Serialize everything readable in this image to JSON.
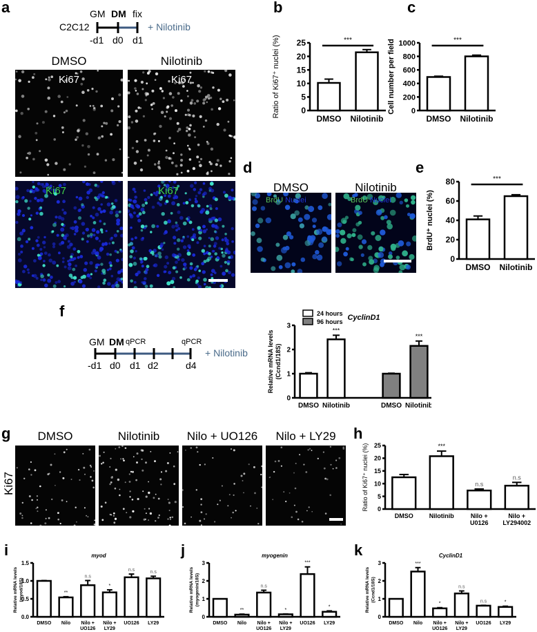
{
  "panels": {
    "a": {
      "label": "a",
      "timeline": {
        "cell_line": "C2C12",
        "top_labels": [
          "GM",
          "DM",
          "fix"
        ],
        "bottom_labels": [
          "-d1",
          "d0",
          "d1"
        ],
        "treatment": "+ Nilotinib"
      },
      "columns": [
        "DMSO",
        "Nilotinib"
      ],
      "row_labels": {
        "top": "Ki67",
        "bottom": "Ki67"
      }
    },
    "b": {
      "label": "b"
    },
    "c": {
      "label": "c"
    },
    "d": {
      "label": "d",
      "columns": [
        "DMSO",
        "Nilotinib"
      ],
      "stain_label": {
        "brdu": "BrdU",
        "nuclei": "Nuclei"
      }
    },
    "e": {
      "label": "e"
    },
    "f": {
      "label": "f",
      "timeline": {
        "top_labels": [
          "GM",
          "DM",
          "qPCR",
          "qPCR"
        ],
        "bottom_labels": [
          "-d1",
          "d0",
          "d1",
          "d2",
          "d4"
        ],
        "treatment": "+ Nilotinib"
      }
    },
    "g": {
      "label": "g",
      "columns": [
        "DMSO",
        "Nilotinib",
        "Nilo + UO126",
        "Nilo + LY29"
      ],
      "row_label": "Ki67"
    },
    "h": {
      "label": "h"
    },
    "i": {
      "label": "i"
    },
    "j": {
      "label": "j"
    },
    "k": {
      "label": "k"
    }
  },
  "colors": {
    "timeline_blue": "#3d5a80",
    "treatment_text": "#4a6b8a",
    "ki67_green": "#3fd24a",
    "nuclei_blue": "#1a2ad8",
    "bar_gray": "#808080"
  },
  "chart_data": [
    {
      "id": "b",
      "type": "bar",
      "categories": [
        "DMSO",
        "Nilotinib"
      ],
      "values": [
        10.2,
        21.5
      ],
      "errors": [
        1.4,
        1.0
      ],
      "ylabel": "Ratio of Ki67+ nuclei (%)",
      "ylim": [
        0,
        25
      ],
      "yticks": [
        0,
        5,
        10,
        15,
        20,
        25
      ],
      "annotations": [
        {
          "text": "***",
          "type": "bracket",
          "between": [
            "DMSO",
            "Nilotinib"
          ]
        }
      ]
    },
    {
      "id": "c",
      "type": "bar",
      "categories": [
        "DMSO",
        "Nilotinib"
      ],
      "values": [
        495,
        800
      ],
      "errors": [
        12,
        18
      ],
      "ylabel": "Cell number per field",
      "ylim": [
        0,
        1000
      ],
      "yticks": [
        0,
        200,
        400,
        600,
        800,
        1000
      ],
      "annotations": [
        {
          "text": "***",
          "type": "bracket",
          "between": [
            "DMSO",
            "Nilotinib"
          ]
        }
      ]
    },
    {
      "id": "e",
      "type": "bar",
      "categories": [
        "DMSO",
        "Nilotinib"
      ],
      "values": [
        41,
        65
      ],
      "errors": [
        3.5,
        1.5
      ],
      "ylabel": "BrdU+ nuclei (%)",
      "ylim": [
        0,
        80
      ],
      "yticks": [
        0,
        20,
        40,
        60,
        80
      ],
      "annotations": [
        {
          "text": "***",
          "type": "bracket",
          "between": [
            "DMSO",
            "Nilotinib"
          ]
        }
      ]
    },
    {
      "id": "f",
      "type": "bar",
      "title": "CyclinD1",
      "groups": [
        "24 hours",
        "96 hours"
      ],
      "categories": [
        "DMSO",
        "Nilotinib",
        "DMSO",
        "Nilotinib"
      ],
      "series": [
        {
          "name": "24 hours",
          "values": [
            1.0,
            2.42
          ],
          "errors": [
            0.04,
            0.17
          ],
          "color": "#ffffff"
        },
        {
          "name": "96 hours",
          "values": [
            1.0,
            2.15
          ],
          "errors": [
            0.02,
            0.2
          ],
          "color": "#808080"
        }
      ],
      "ylabel": "Relative mRNA levels (Ccnd1/18S)",
      "ylim": [
        0,
        3
      ],
      "yticks": [
        0,
        1,
        2,
        3
      ],
      "legend": [
        "24 hours",
        "96 hours"
      ],
      "legend_position": "top-left",
      "annotations": [
        {
          "text": "***",
          "bar": 1
        },
        {
          "text": "***",
          "bar": 3
        }
      ]
    },
    {
      "id": "h",
      "type": "bar",
      "categories": [
        "DMSO",
        "Nilotinib",
        "Nilo + U0126",
        "Nilo + LY294002"
      ],
      "values": [
        12.5,
        20.8,
        7.3,
        9.2
      ],
      "errors": [
        1.1,
        2.0,
        0.6,
        1.3
      ],
      "ylabel": "Ratio of Ki67+ nuclei (%)",
      "ylim": [
        0,
        25
      ],
      "yticks": [
        0,
        5,
        10,
        15,
        20,
        25
      ],
      "annotations": [
        {
          "text": "***",
          "bar": 1
        },
        {
          "text": "n.s",
          "bar": 2
        },
        {
          "text": "n.s",
          "bar": 3
        }
      ]
    },
    {
      "id": "i",
      "type": "bar",
      "title": "myod",
      "categories": [
        "DMSO",
        "Nilo",
        "Nilo + UO126",
        "Nilo + LY29",
        "UO126",
        "LY29"
      ],
      "values": [
        1.0,
        0.54,
        0.88,
        0.68,
        1.1,
        1.07
      ],
      "errors": [
        0.01,
        0.02,
        0.13,
        0.07,
        0.09,
        0.06
      ],
      "ylabel": "Relative mRNA levels (myod/18S)",
      "ylim": [
        0,
        1.5
      ],
      "yticks": [
        0.0,
        0.5,
        1.0,
        1.5
      ],
      "annotations": [
        {
          "text": "**",
          "bar": 1
        },
        {
          "text": "n.s",
          "bar": 2
        },
        {
          "text": "*",
          "bar": 3
        },
        {
          "text": "n.s",
          "bar": 4
        },
        {
          "text": "n.s",
          "bar": 5
        }
      ]
    },
    {
      "id": "j",
      "type": "bar",
      "title": "myogenin",
      "categories": [
        "DMSO",
        "Nilo",
        "Nilo + UO126",
        "Nilo + LY29",
        "UO126",
        "LY29"
      ],
      "values": [
        1.0,
        0.12,
        1.35,
        0.14,
        2.38,
        0.28
      ],
      "errors": [
        0.0,
        0.03,
        0.13,
        0.02,
        0.4,
        0.05
      ],
      "ylabel": "Relative mRNA levels (myogenin/18S)",
      "ylim": [
        0,
        3
      ],
      "yticks": [
        0,
        1,
        2,
        3
      ],
      "annotations": [
        {
          "text": "**",
          "bar": 1
        },
        {
          "text": "n.s",
          "bar": 2
        },
        {
          "text": "*",
          "bar": 3
        },
        {
          "text": "***",
          "bar": 4
        },
        {
          "text": "*",
          "bar": 5
        }
      ]
    },
    {
      "id": "k",
      "type": "bar",
      "title": "CyclinD1",
      "categories": [
        "DMSO",
        "Nilo",
        "Nilo + UO126",
        "Nilo + LY29",
        "UO126",
        "LY29"
      ],
      "values": [
        1.0,
        2.52,
        0.47,
        1.3,
        0.62,
        0.55
      ],
      "errors": [
        0.0,
        0.22,
        0.04,
        0.14,
        0.02,
        0.04
      ],
      "ylabel": "Relative mRNA levels (Ccnd1/18S)",
      "ylim": [
        0,
        3
      ],
      "yticks": [
        0,
        1,
        2,
        3
      ],
      "annotations": [
        {
          "text": "***",
          "bar": 1
        },
        {
          "text": "*",
          "bar": 2
        },
        {
          "text": "n.s",
          "bar": 3
        },
        {
          "text": "n.s",
          "bar": 4
        },
        {
          "text": "*",
          "bar": 5
        }
      ]
    }
  ]
}
